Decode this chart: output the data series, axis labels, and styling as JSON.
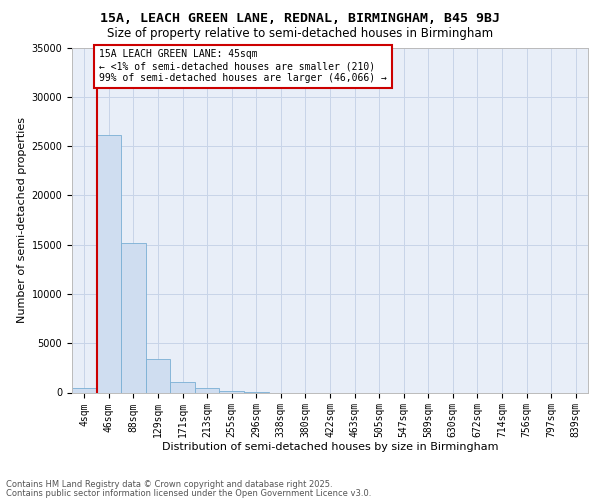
{
  "title_line1": "15A, LEACH GREEN LANE, REDNAL, BIRMINGHAM, B45 9BJ",
  "title_line2": "Size of property relative to semi-detached houses in Birmingham",
  "xlabel": "Distribution of semi-detached houses by size in Birmingham",
  "ylabel": "Number of semi-detached properties",
  "bin_labels": [
    "4sqm",
    "46sqm",
    "88sqm",
    "129sqm",
    "171sqm",
    "213sqm",
    "255sqm",
    "296sqm",
    "338sqm",
    "380sqm",
    "422sqm",
    "463sqm",
    "505sqm",
    "547sqm",
    "589sqm",
    "630sqm",
    "672sqm",
    "714sqm",
    "756sqm",
    "797sqm",
    "839sqm"
  ],
  "bar_values": [
    430,
    26100,
    15200,
    3350,
    1050,
    450,
    200,
    50,
    0,
    0,
    0,
    0,
    0,
    0,
    0,
    0,
    0,
    0,
    0,
    0,
    0
  ],
  "bar_color": "#cfddf0",
  "bar_edge_color": "#7aafd4",
  "vline_x": 0.5,
  "annotation_text": "15A LEACH GREEN LANE: 45sqm\n← <1% of semi-detached houses are smaller (210)\n99% of semi-detached houses are larger (46,066) →",
  "annotation_box_color": "#ffffff",
  "annotation_box_edge": "#cc0000",
  "vline_color": "#cc0000",
  "ylim": [
    0,
    35000
  ],
  "yticks": [
    0,
    5000,
    10000,
    15000,
    20000,
    25000,
    30000,
    35000
  ],
  "ytick_labels": [
    "0",
    "5000",
    "10000",
    "15000",
    "20000",
    "25000",
    "30000",
    "35000"
  ],
  "grid_color": "#c8d4e8",
  "background_color": "#e8eef8",
  "footer_line1": "Contains HM Land Registry data © Crown copyright and database right 2025.",
  "footer_line2": "Contains public sector information licensed under the Open Government Licence v3.0.",
  "title_fontsize": 9.5,
  "subtitle_fontsize": 8.5,
  "label_fontsize": 8,
  "tick_fontsize": 7,
  "annotation_fontsize": 7,
  "footer_fontsize": 6
}
